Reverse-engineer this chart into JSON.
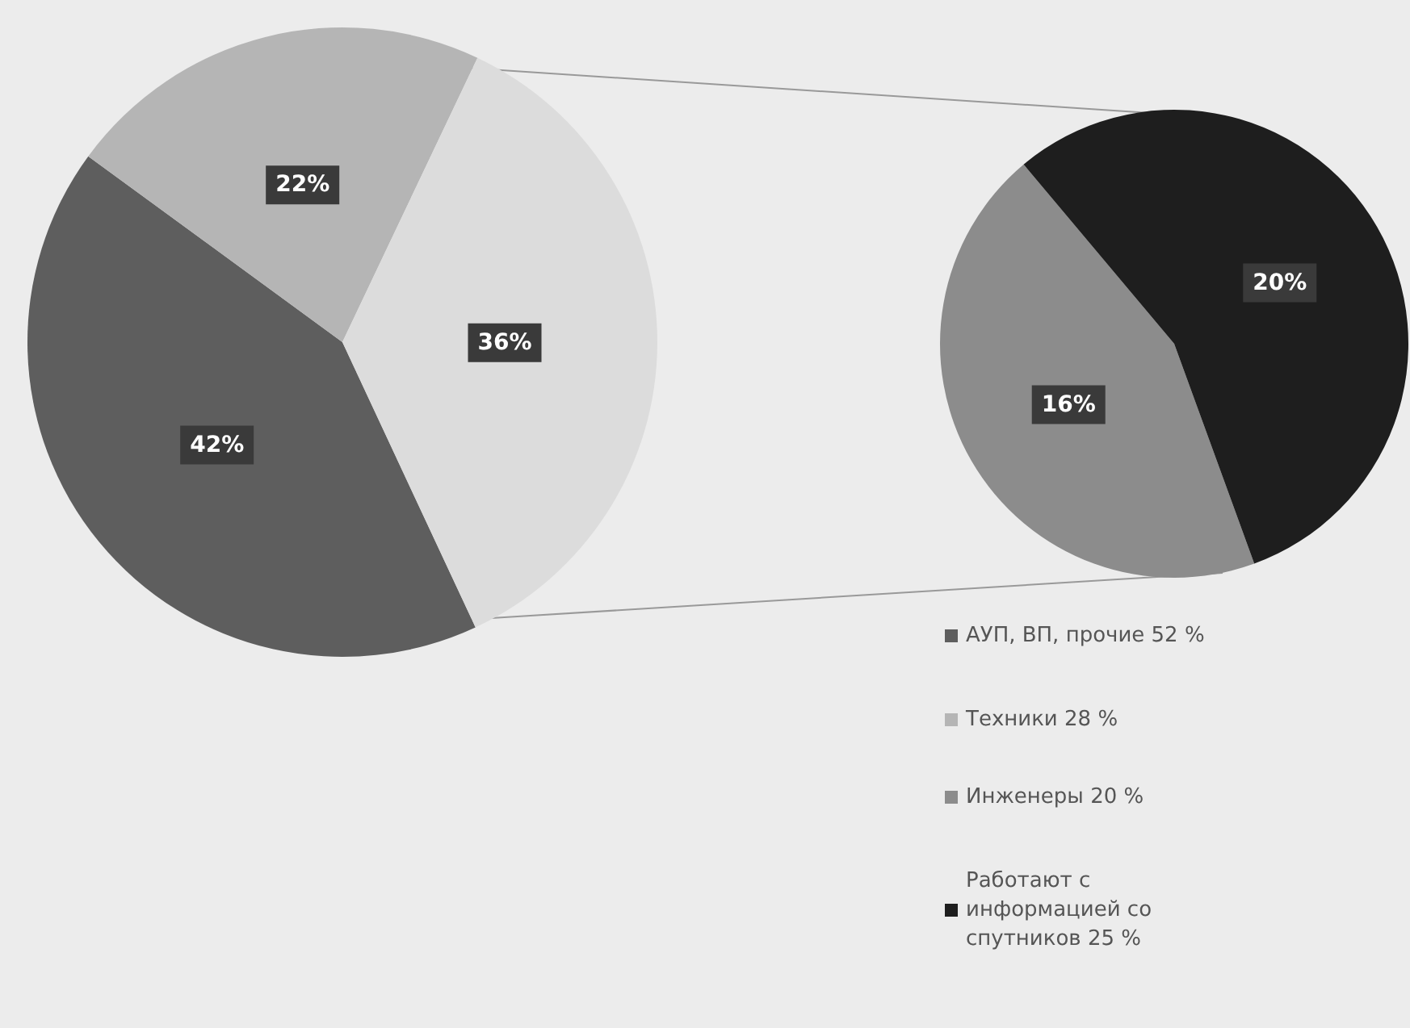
{
  "chart_data": [
    {
      "type": "pie",
      "categories": [
        "АУП, ВП, прочие 52 %",
        "Техники 28 %",
        null
      ],
      "values": [
        42,
        22,
        36
      ],
      "colors": [
        "#5e5e5e",
        "#b5b5b5",
        "#dcdcdc"
      ],
      "value_labels": [
        "42%",
        "22%",
        "36%"
      ],
      "legend": "bottom right"
    },
    {
      "type": "pie",
      "categories": [
        "Инженеры 20 %",
        "Работают с информацией со спутников 25 %"
      ],
      "values": [
        16,
        20
      ],
      "colors": [
        "#8c8c8c",
        "#1e1e1e"
      ],
      "value_labels": [
        "16%",
        "20%"
      ],
      "legend": "bottom"
    }
  ]
}
